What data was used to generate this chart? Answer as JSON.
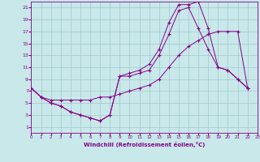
{
  "xlabel": "Windchill (Refroidissement éolien,°C)",
  "bg_color": "#c8e8ea",
  "grid_color": "#a0c8cc",
  "line_color": "#880088",
  "line1_x": [
    0,
    1,
    2,
    3,
    4,
    5,
    6,
    7,
    8,
    9,
    10,
    11,
    12,
    13,
    14,
    15,
    16,
    17,
    18,
    19,
    20,
    21,
    22,
    23
  ],
  "line1_y": [
    7.5,
    6.0,
    5.0,
    4.5,
    3.5,
    3.0,
    2.5,
    2.0,
    3.0,
    9.5,
    10.0,
    10.5,
    11.5,
    14.0,
    18.5,
    21.5,
    21.5,
    22.0,
    17.5,
    11.0,
    10.5,
    9.0,
    7.5,
    null
  ],
  "line2_x": [
    0,
    1,
    2,
    3,
    4,
    5,
    6,
    7,
    8,
    9,
    10,
    11,
    12,
    13,
    14,
    15,
    16,
    17,
    18,
    19,
    20,
    21,
    22,
    23
  ],
  "line2_y": [
    7.5,
    6.0,
    5.0,
    4.5,
    3.5,
    3.0,
    2.5,
    2.0,
    3.0,
    9.5,
    9.5,
    10.0,
    10.5,
    13.0,
    16.5,
    20.5,
    21.0,
    17.5,
    14.0,
    11.0,
    10.5,
    9.0,
    7.5,
    null
  ],
  "line3_x": [
    0,
    1,
    2,
    3,
    4,
    5,
    6,
    7,
    8,
    9,
    10,
    11,
    12,
    13,
    14,
    15,
    16,
    17,
    18,
    19,
    20,
    21,
    22,
    23
  ],
  "line3_y": [
    7.5,
    6.0,
    5.5,
    5.5,
    5.5,
    5.5,
    5.5,
    6.0,
    6.0,
    6.5,
    7.0,
    7.5,
    8.0,
    9.0,
    11.0,
    13.0,
    14.5,
    15.5,
    16.5,
    17.0,
    17.0,
    17.0,
    7.5,
    null
  ],
  "xlim": [
    0,
    23
  ],
  "ylim": [
    0,
    22
  ],
  "xticks": [
    0,
    1,
    2,
    3,
    4,
    5,
    6,
    7,
    8,
    9,
    10,
    11,
    12,
    13,
    14,
    15,
    16,
    17,
    18,
    19,
    20,
    21,
    22,
    23
  ],
  "yticks": [
    1,
    3,
    5,
    7,
    9,
    11,
    13,
    15,
    17,
    19,
    21
  ]
}
